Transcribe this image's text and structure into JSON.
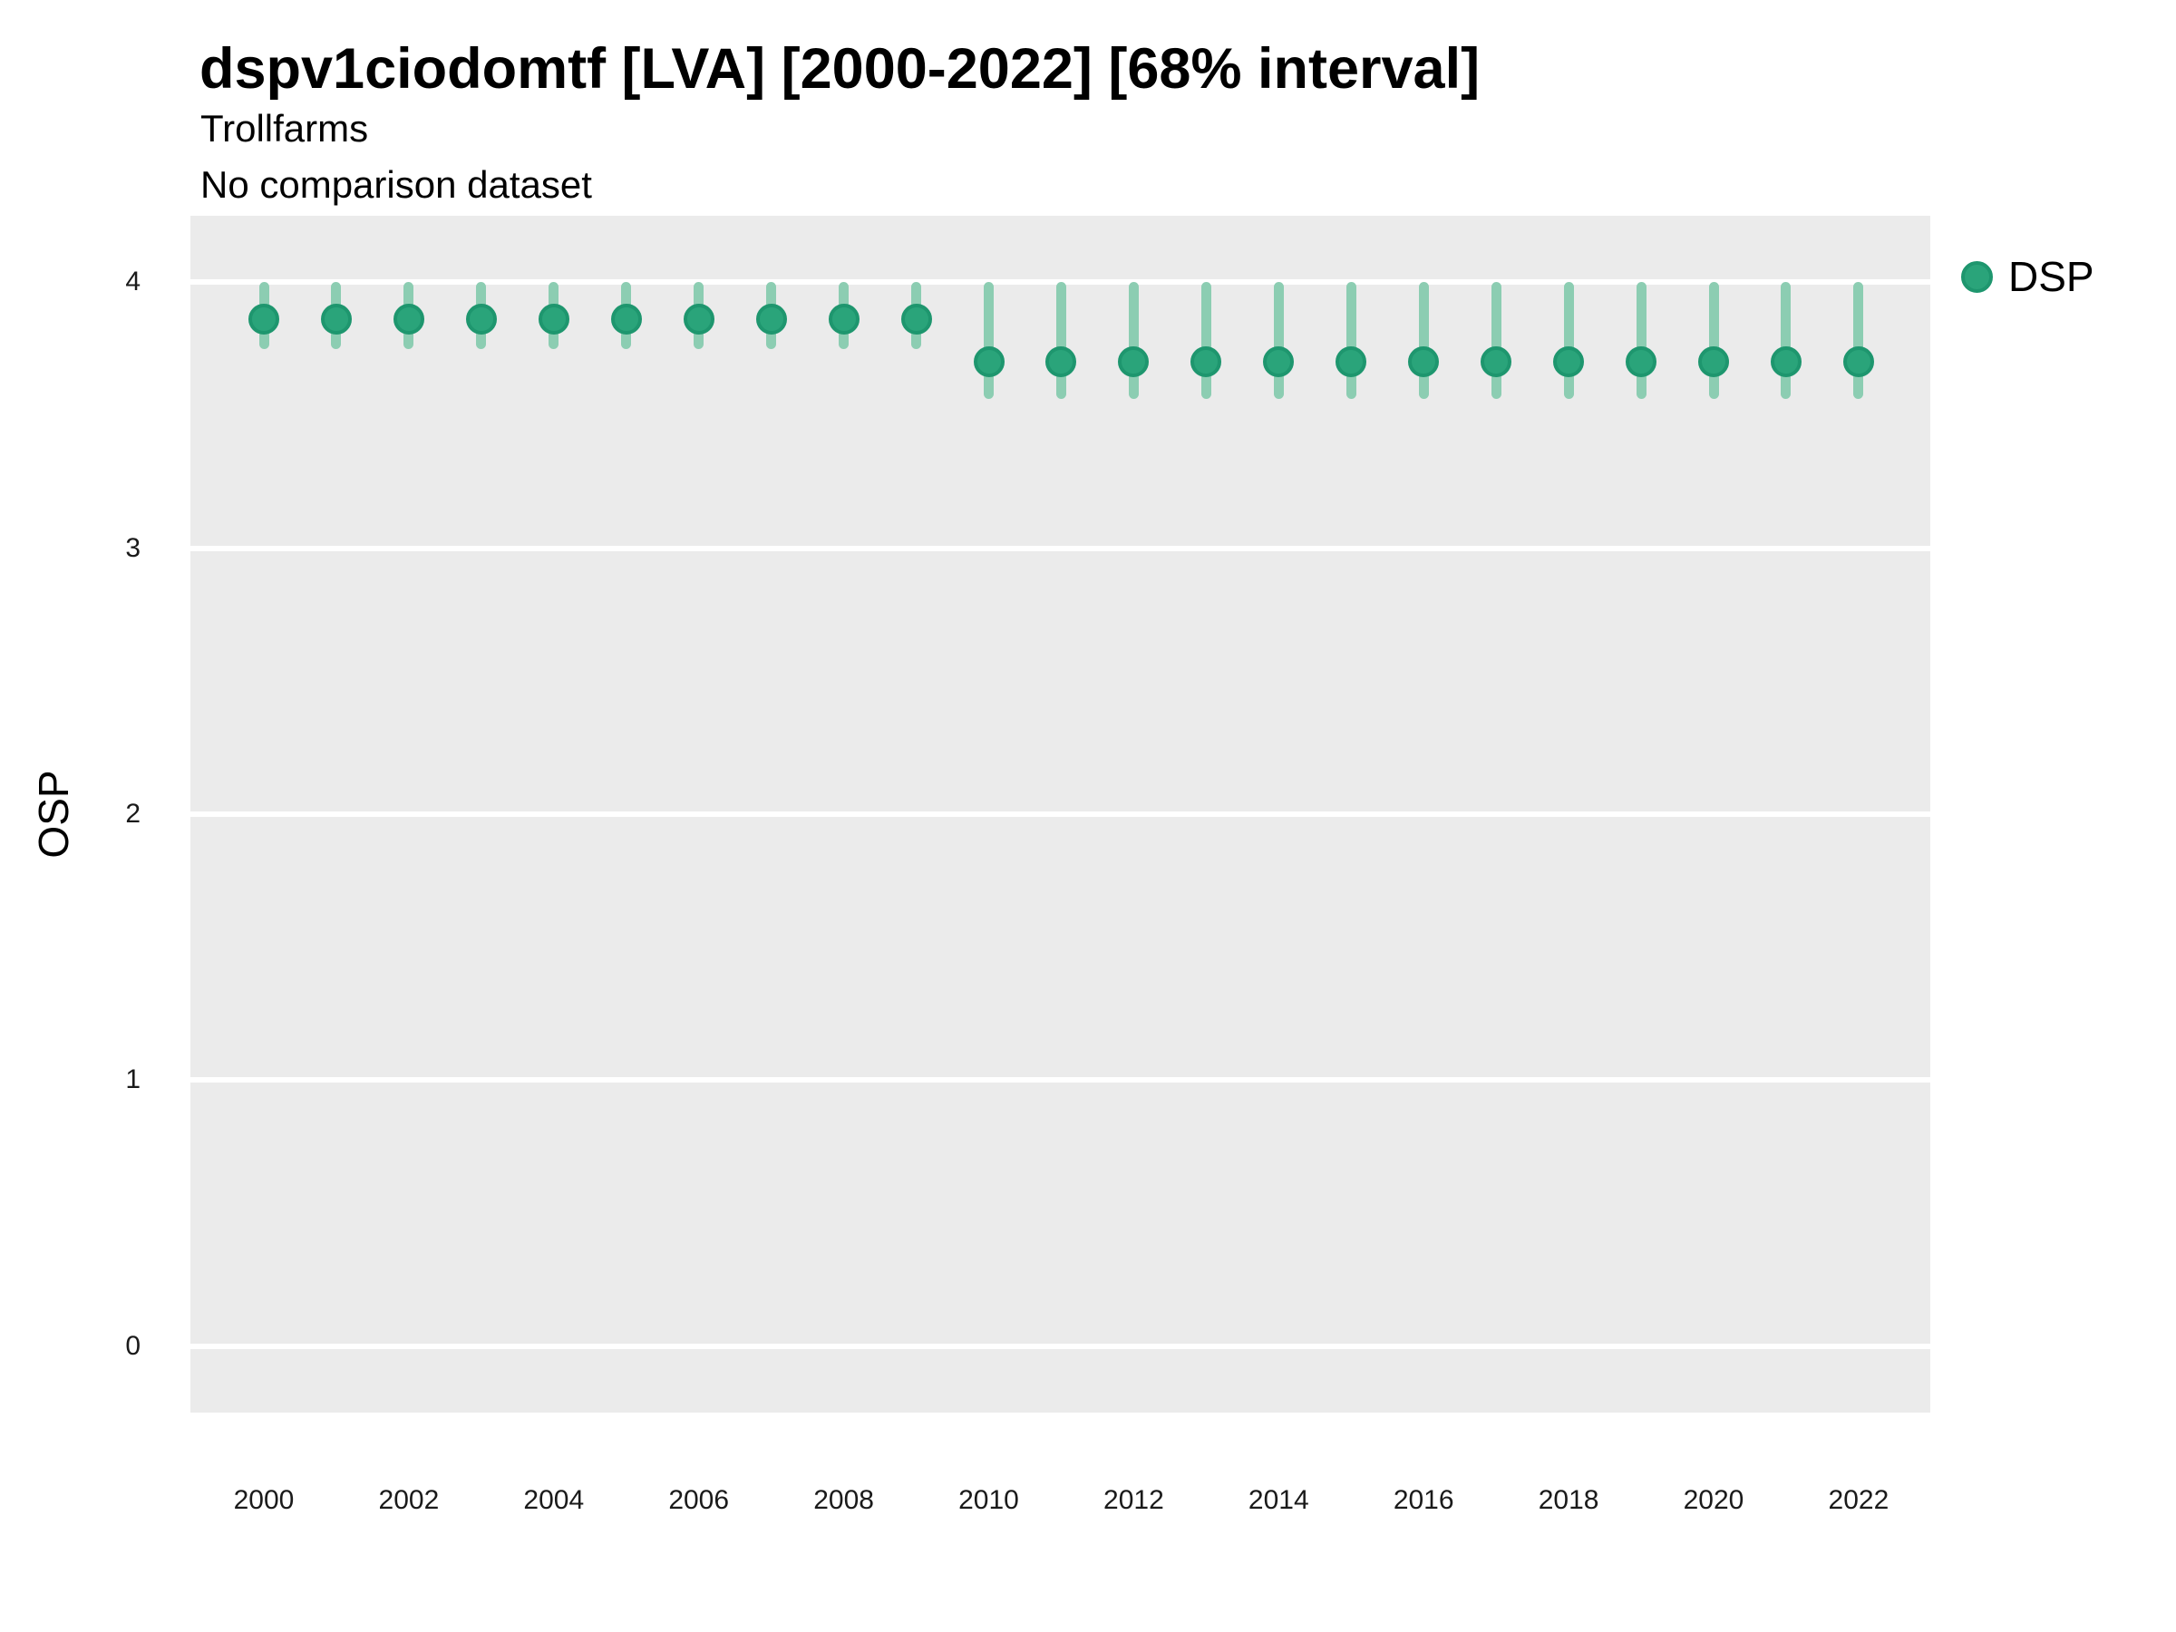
{
  "page": {
    "background": "#ffffff"
  },
  "header": {
    "title": "dspv1ciodomtf [LVA] [2000-2022] [68% interval]",
    "subtitle": "Trollfarms",
    "comparison_note": "No comparison dataset"
  },
  "legend": {
    "position": "right",
    "entries": [
      {
        "label": "DSP",
        "marker_color": "#2aa47a",
        "marker_edge_color": "#1e966e"
      }
    ]
  },
  "colors": {
    "panel_bg": "#ebebeb",
    "gridline": "#ffffff",
    "point_fill": "#2aa47a",
    "point_edge": "#1e966e",
    "interval_bar": "#8ccdb2",
    "text": "#000000"
  },
  "chart_data": {
    "type": "scatter",
    "title": "dspv1ciodomtf [LVA] [2000-2022] [68% interval]",
    "subtitle": "Trollfarms",
    "note": "No comparison dataset",
    "interval_level": "68%",
    "xlabel": "",
    "ylabel": "OSP",
    "ylim": [
      -0.25,
      4.25
    ],
    "yticks": [
      0,
      1,
      2,
      3,
      4
    ],
    "xticks": [
      2000,
      2002,
      2004,
      2006,
      2008,
      2010,
      2012,
      2014,
      2016,
      2018,
      2020,
      2022
    ],
    "grid": "horizontal-major-only",
    "legend_position": "right",
    "series": [
      {
        "name": "DSP",
        "marker_color": "#2aa47a",
        "marker_edge_color": "#1e966e",
        "interval_color": "#8ccdb2",
        "points": [
          {
            "x": 2000,
            "y": 3.86,
            "lo": 3.75,
            "hi": 4.0
          },
          {
            "x": 2001,
            "y": 3.86,
            "lo": 3.75,
            "hi": 4.0
          },
          {
            "x": 2002,
            "y": 3.86,
            "lo": 3.75,
            "hi": 4.0
          },
          {
            "x": 2003,
            "y": 3.86,
            "lo": 3.75,
            "hi": 4.0
          },
          {
            "x": 2004,
            "y": 3.86,
            "lo": 3.75,
            "hi": 4.0
          },
          {
            "x": 2005,
            "y": 3.86,
            "lo": 3.75,
            "hi": 4.0
          },
          {
            "x": 2006,
            "y": 3.86,
            "lo": 3.75,
            "hi": 4.0
          },
          {
            "x": 2007,
            "y": 3.86,
            "lo": 3.75,
            "hi": 4.0
          },
          {
            "x": 2008,
            "y": 3.86,
            "lo": 3.75,
            "hi": 4.0
          },
          {
            "x": 2009,
            "y": 3.86,
            "lo": 3.75,
            "hi": 4.0
          },
          {
            "x": 2010,
            "y": 3.7,
            "lo": 3.56,
            "hi": 4.0
          },
          {
            "x": 2011,
            "y": 3.7,
            "lo": 3.56,
            "hi": 4.0
          },
          {
            "x": 2012,
            "y": 3.7,
            "lo": 3.56,
            "hi": 4.0
          },
          {
            "x": 2013,
            "y": 3.7,
            "lo": 3.56,
            "hi": 4.0
          },
          {
            "x": 2014,
            "y": 3.7,
            "lo": 3.56,
            "hi": 4.0
          },
          {
            "x": 2015,
            "y": 3.7,
            "lo": 3.56,
            "hi": 4.0
          },
          {
            "x": 2016,
            "y": 3.7,
            "lo": 3.56,
            "hi": 4.0
          },
          {
            "x": 2017,
            "y": 3.7,
            "lo": 3.56,
            "hi": 4.0
          },
          {
            "x": 2018,
            "y": 3.7,
            "lo": 3.56,
            "hi": 4.0
          },
          {
            "x": 2019,
            "y": 3.7,
            "lo": 3.56,
            "hi": 4.0
          },
          {
            "x": 2020,
            "y": 3.7,
            "lo": 3.56,
            "hi": 4.0
          },
          {
            "x": 2021,
            "y": 3.7,
            "lo": 3.56,
            "hi": 4.0
          },
          {
            "x": 2022,
            "y": 3.7,
            "lo": 3.56,
            "hi": 4.0
          }
        ]
      }
    ]
  }
}
